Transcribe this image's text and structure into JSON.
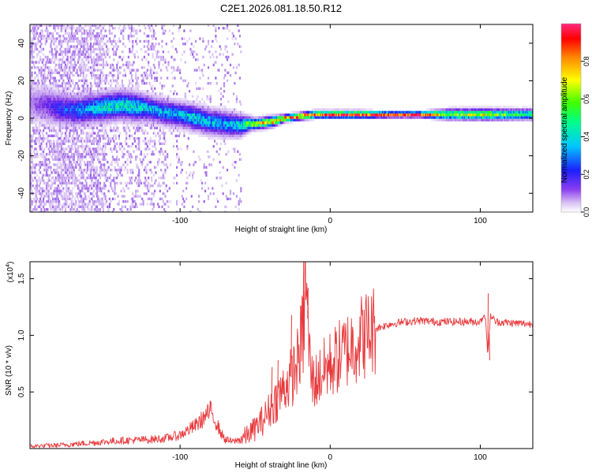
{
  "figure": {
    "title": "C2E1.2026.081.18.50.R12"
  },
  "chart_data": [
    {
      "type": "heatmap",
      "title": "C2E1.2026.081.18.50.R12",
      "xlabel": "Height of straight line (km)",
      "ylabel": "Frequency (Hz)",
      "xlim": [
        -200,
        135
      ],
      "ylim": [
        -50,
        50
      ],
      "xticks": [
        -100,
        0,
        100
      ],
      "yticks": [
        -40,
        -20,
        0,
        20,
        40
      ],
      "colorbar": {
        "label": "Normalized spectral amplitude",
        "range": [
          0,
          1
        ],
        "ticks": [
          "0.0",
          "0.2",
          "0.4",
          "0.6",
          "0.8"
        ],
        "colors": [
          "#ffffff",
          "#c8a8f0",
          "#7a2be2",
          "#2020ff",
          "#00c8ff",
          "#00ff80",
          "#40ff00",
          "#ffff00",
          "#ff8000",
          "#ff0000",
          "#ff2080"
        ]
      },
      "ridge": {
        "x": [
          -200,
          -190,
          -180,
          -170,
          -160,
          -150,
          -140,
          -130,
          -120,
          -110,
          -100,
          -90,
          -80,
          -70,
          -60,
          -55,
          -50,
          -40,
          -30,
          -20,
          -10,
          0,
          10,
          20,
          40,
          60,
          80,
          100,
          120,
          135
        ],
        "freq": [
          8,
          7,
          5,
          4,
          5,
          6,
          7,
          6,
          5,
          3,
          2,
          0,
          -2,
          -3,
          -4,
          -3,
          -3,
          -2,
          0,
          1,
          2,
          2,
          2,
          2,
          2,
          2,
          2,
          2,
          2,
          2
        ],
        "amplitude": [
          0.15,
          0.2,
          0.3,
          0.35,
          0.4,
          0.45,
          0.45,
          0.45,
          0.4,
          0.4,
          0.4,
          0.45,
          0.4,
          0.4,
          0.45,
          0.6,
          0.7,
          0.75,
          0.8,
          0.85,
          0.85,
          0.9,
          0.9,
          0.9,
          0.95,
          0.95,
          0.6,
          0.7,
          0.55,
          0.5
        ],
        "bandwidth_hz": [
          10,
          10,
          9,
          8,
          8,
          8,
          8,
          8,
          7,
          7,
          7,
          7,
          7,
          7,
          6,
          4,
          3,
          3,
          2,
          2,
          2,
          2,
          2,
          2,
          1.5,
          1.5,
          3,
          3,
          3,
          3
        ]
      }
    },
    {
      "type": "line",
      "xlabel": "Height of straight line (km)",
      "ylabel": "SNR (10 * v/v)",
      "scale_note": "(x10",
      "scale_exp": "4",
      "scale_close": ")",
      "xlim": [
        -200,
        135
      ],
      "ylim": [
        0,
        1.65
      ],
      "xticks": [
        -100,
        0,
        100
      ],
      "yticks": [
        "0.5",
        "1.0",
        "1.5"
      ],
      "ytick_values": [
        0.5,
        1.0,
        1.5
      ],
      "color": "#e8383b",
      "series": [
        {
          "name": "SNR",
          "x": [
            -200,
            -180,
            -160,
            -140,
            -120,
            -110,
            -100,
            -95,
            -90,
            -85,
            -82,
            -80,
            -78,
            -75,
            -72,
            -70,
            -65,
            -60,
            -55,
            -50,
            -45,
            -40,
            -35,
            -30,
            -25,
            -22,
            -20,
            -18,
            -16,
            -15,
            -14,
            -12,
            -10,
            -8,
            -5,
            0,
            5,
            10,
            15,
            20,
            30,
            40,
            50,
            60,
            70,
            80,
            90,
            100,
            103,
            105,
            107,
            110,
            120,
            135
          ],
          "y": [
            0.02,
            0.03,
            0.05,
            0.07,
            0.08,
            0.09,
            0.12,
            0.16,
            0.2,
            0.26,
            0.3,
            0.33,
            0.3,
            0.2,
            0.12,
            0.08,
            0.06,
            0.08,
            0.12,
            0.18,
            0.25,
            0.35,
            0.45,
            0.55,
            0.65,
            0.75,
            0.9,
            1.0,
            1.6,
            1.15,
            0.85,
            0.6,
            0.6,
            0.62,
            0.68,
            0.74,
            0.8,
            0.86,
            0.92,
            0.98,
            1.06,
            1.1,
            1.12,
            1.13,
            1.12,
            1.12,
            1.12,
            1.12,
            1.2,
            0.85,
            1.18,
            1.12,
            1.11,
            1.1
          ]
        }
      ],
      "spikes": [
        {
          "x": -18,
          "y": 1.66
        },
        {
          "x": -15,
          "y": 1.42
        },
        {
          "x": -19,
          "y": 1.35
        },
        {
          "x": -26,
          "y": 1.18
        },
        {
          "x": 105,
          "y": 1.37
        },
        {
          "x": 106,
          "y": 0.78
        },
        {
          "x": -80,
          "y": 0.42
        },
        {
          "x": -39,
          "y": 0.72
        },
        {
          "x": -35,
          "y": 0.78
        }
      ]
    }
  ]
}
